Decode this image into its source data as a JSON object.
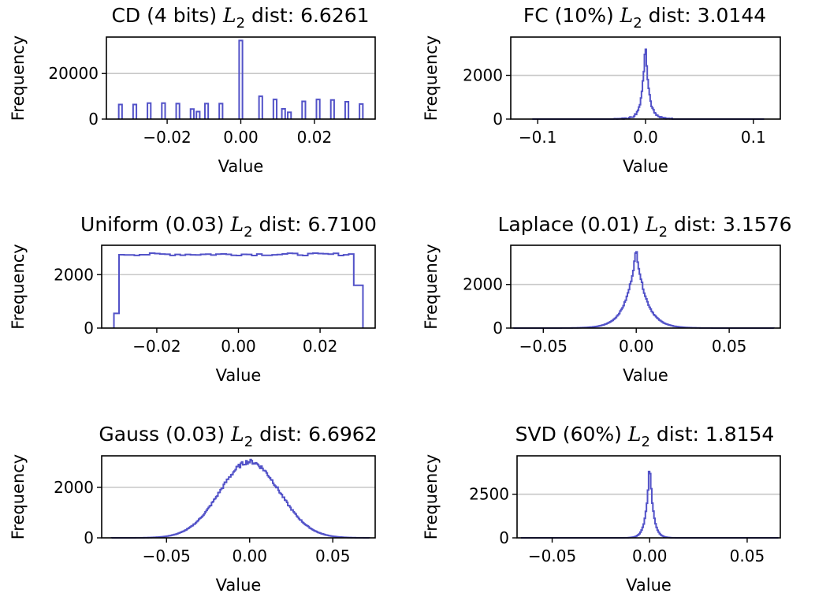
{
  "chart_data": [
    {
      "type": "histogram",
      "title_main": "CD (4 bits) ",
      "title_math": "L",
      "title_sub": "2",
      "title_tail": " dist: 6.6261",
      "xlabel": "Value",
      "ylabel": "Frequency",
      "xlim": [
        -0.0365,
        0.0365
      ],
      "ylim": [
        0,
        36000
      ],
      "xticks": [
        -0.02,
        0.0,
        0.02
      ],
      "xtick_labels": [
        "−0.02",
        "0.00",
        "0.02"
      ],
      "yticks": [
        0,
        20000
      ],
      "ytick_labels": [
        "0",
        "20000"
      ],
      "grid_y": [
        20000
      ],
      "color": "#5252c8",
      "mode": "bars",
      "bar_width": 0.0009,
      "bars": [
        {
          "x": -0.0327,
          "y": 6400
        },
        {
          "x": -0.0288,
          "y": 6400
        },
        {
          "x": -0.0249,
          "y": 7000
        },
        {
          "x": -0.021,
          "y": 7000
        },
        {
          "x": -0.0171,
          "y": 6800
        },
        {
          "x": -0.0132,
          "y": 4400
        },
        {
          "x": -0.0116,
          "y": 3300
        },
        {
          "x": -0.0093,
          "y": 6800
        },
        {
          "x": -0.0054,
          "y": 6800
        },
        {
          "x": 0.0,
          "y": 34500
        },
        {
          "x": 0.0054,
          "y": 10000
        },
        {
          "x": 0.0093,
          "y": 8600
        },
        {
          "x": 0.0116,
          "y": 4500
        },
        {
          "x": 0.0132,
          "y": 3000
        },
        {
          "x": 0.0171,
          "y": 7800
        },
        {
          "x": 0.021,
          "y": 8600
        },
        {
          "x": 0.0249,
          "y": 8400
        },
        {
          "x": 0.0288,
          "y": 7600
        },
        {
          "x": 0.0327,
          "y": 6600
        }
      ]
    },
    {
      "type": "histogram",
      "title_main": "FC (10%) ",
      "title_math": "L",
      "title_sub": "2",
      "title_tail": " dist: 3.0144",
      "xlabel": "Value",
      "ylabel": "Frequency",
      "xlim": [
        -0.125,
        0.125
      ],
      "ylim": [
        0,
        3750
      ],
      "xticks": [
        -0.1,
        0.0,
        0.1
      ],
      "xtick_labels": [
        "−0.1",
        "0.0",
        "0.1"
      ],
      "yticks": [
        0,
        2000
      ],
      "ytick_labels": [
        "0",
        "2000"
      ],
      "grid_y": [
        2000
      ],
      "color": "#5252c8",
      "mode": "sparse",
      "peak": 3550,
      "spread": 0.003,
      "support": [
        -0.105,
        0.11
      ],
      "noise_range": [
        -0.03,
        0.025
      ],
      "noise_level": 260
    },
    {
      "type": "histogram",
      "title_main": "Uniform (0.03) ",
      "title_math": "L",
      "title_sub": "2",
      "title_tail": " dist: 6.7100",
      "xlabel": "Value",
      "ylabel": "Frequency",
      "xlim": [
        -0.0335,
        0.0335
      ],
      "ylim": [
        0,
        3100
      ],
      "xticks": [
        -0.02,
        0.0,
        0.02
      ],
      "xtick_labels": [
        "−0.02",
        "0.00",
        "0.02"
      ],
      "yticks": [
        0,
        2000
      ],
      "ytick_labels": [
        "0",
        "2000"
      ],
      "grid_y": [
        2000
      ],
      "color": "#5252c8",
      "mode": "uniform",
      "low": -0.0305,
      "high": 0.0305,
      "level": 2760,
      "edge_left": 550,
      "edge_right": 1600
    },
    {
      "type": "histogram",
      "title_main": "Laplace (0.01) ",
      "title_math": "L",
      "title_sub": "2",
      "title_tail": " dist: 3.1576",
      "xlabel": "Value",
      "ylabel": "Frequency",
      "xlim": [
        -0.0675,
        0.0775
      ],
      "ylim": [
        0,
        3800
      ],
      "xticks": [
        -0.05,
        0.0,
        0.05
      ],
      "xtick_labels": [
        "−0.05",
        "0.00",
        "0.05"
      ],
      "yticks": [
        0,
        2000
      ],
      "ytick_labels": [
        "0",
        "2000"
      ],
      "grid_y": [
        2000
      ],
      "color": "#5252c8",
      "mode": "laplace",
      "peak": 3600,
      "scale": 0.0055,
      "support": [
        -0.066,
        0.074
      ]
    },
    {
      "type": "histogram",
      "title_main": "Gauss (0.03) ",
      "title_math": "L",
      "title_sub": "2",
      "title_tail": " dist: 6.6962",
      "xlabel": "Value",
      "ylabel": "Frequency",
      "xlim": [
        -0.089,
        0.0755
      ],
      "ylim": [
        0,
        3250
      ],
      "xticks": [
        -0.05,
        0.0,
        0.05
      ],
      "xtick_labels": [
        "−0.05",
        "0.00",
        "0.05"
      ],
      "yticks": [
        0,
        2000
      ],
      "ytick_labels": [
        "0",
        "2000"
      ],
      "grid_y": [
        2000
      ],
      "color": "#5252c8",
      "mode": "gauss",
      "peak": 3020,
      "sigma": 0.018,
      "support": [
        -0.083,
        0.072
      ]
    },
    {
      "type": "histogram",
      "title_main": "SVD (60%) ",
      "title_math": "L",
      "title_sub": "2",
      "title_tail": " dist: 1.8154",
      "xlabel": "Value",
      "ylabel": "Frequency",
      "xlim": [
        -0.068,
        0.067
      ],
      "ylim": [
        0,
        4700
      ],
      "xticks": [
        -0.05,
        0.0,
        0.05
      ],
      "xtick_labels": [
        "−0.05",
        "0.00",
        "0.05"
      ],
      "yticks": [
        0,
        2500
      ],
      "ytick_labels": [
        "0",
        "2500"
      ],
      "grid_y": [
        2500
      ],
      "color": "#5252c8",
      "mode": "laplace",
      "peak": 4350,
      "scale": 0.0018,
      "support": [
        -0.066,
        0.066
      ]
    }
  ]
}
